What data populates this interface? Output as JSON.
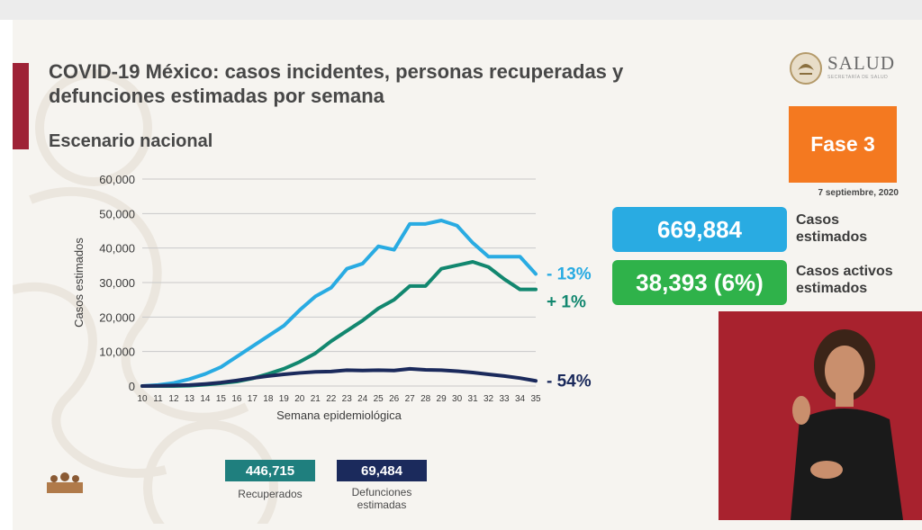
{
  "slide": {
    "title": "COVID-19 México: casos incidentes, personas recuperadas y defunciones estimadas por semana",
    "subtitle": "Escenario nacional",
    "logo_text": "SALUD",
    "logo_subtext": "SECRETARÍA DE SALUD",
    "phase_label": "Fase 3",
    "date": "7 septiembre, 2020"
  },
  "stats": {
    "cases_value": "669,884",
    "cases_label_1": "Casos",
    "cases_label_2": "estimados",
    "active_value": "38,393 (6%)",
    "active_label_1": "Casos activos",
    "active_label_2": "estimados"
  },
  "summary": {
    "recovered_value": "446,715",
    "recovered_label": "Recuperados",
    "deaths_value": "69,484",
    "deaths_label_1": "Defunciones",
    "deaths_label_2": "estimadas"
  },
  "colors": {
    "accent": "#9e2236",
    "phase": "#f47920",
    "cases": "#29abe2",
    "recovered": "#12876f",
    "deaths": "#1b2a5c",
    "recovered_box": "#1f7f7e",
    "deaths_box": "#1b2a5c",
    "grid": "#c9c9c9",
    "text": "#474747"
  },
  "icons": {
    "logo": "salud-eagle-seal-icon",
    "sign": "people-silhouette-icon"
  },
  "chart_data": {
    "type": "line",
    "xlabel": "Semana epidemiológica",
    "ylabel": "Casos estimados",
    "ylim": [
      0,
      60000
    ],
    "yticks": [
      "0",
      "10,000",
      "20,000",
      "30,000",
      "40,000",
      "50,000",
      "60,000"
    ],
    "ytick_values": [
      0,
      10000,
      20000,
      30000,
      40000,
      50000,
      60000
    ],
    "x": [
      "10",
      "11",
      "12",
      "13",
      "14",
      "15",
      "16",
      "17",
      "18",
      "19",
      "20",
      "21",
      "22",
      "23",
      "24",
      "25",
      "26",
      "27",
      "28",
      "29",
      "30",
      "31",
      "32",
      "33",
      "34",
      "35"
    ],
    "grid": true,
    "series": [
      {
        "key": "cases",
        "values": [
          0,
          300,
          900,
          2000,
          3500,
          5500,
          8500,
          11500,
          14500,
          17500,
          22000,
          26000,
          28500,
          34000,
          35500,
          40500,
          39500,
          47000,
          47000,
          48000,
          46500,
          41500,
          37500,
          37500,
          37500,
          32500
        ],
        "change_label": "- 13%"
      },
      {
        "key": "recovered",
        "values": [
          0,
          0,
          0,
          100,
          400,
          800,
          1300,
          2200,
          3500,
          5000,
          7000,
          9500,
          13000,
          16000,
          19000,
          22500,
          25000,
          29000,
          29000,
          34000,
          35000,
          36000,
          34500,
          31000,
          28000,
          28000
        ],
        "change_label": "+ 1%"
      },
      {
        "key": "deaths",
        "values": [
          0,
          50,
          150,
          300,
          600,
          1000,
          1600,
          2300,
          2900,
          3400,
          3800,
          4100,
          4200,
          4600,
          4500,
          4600,
          4500,
          5000,
          4700,
          4600,
          4300,
          3900,
          3400,
          2900,
          2300,
          1500
        ],
        "change_label": "- 54%"
      }
    ]
  }
}
